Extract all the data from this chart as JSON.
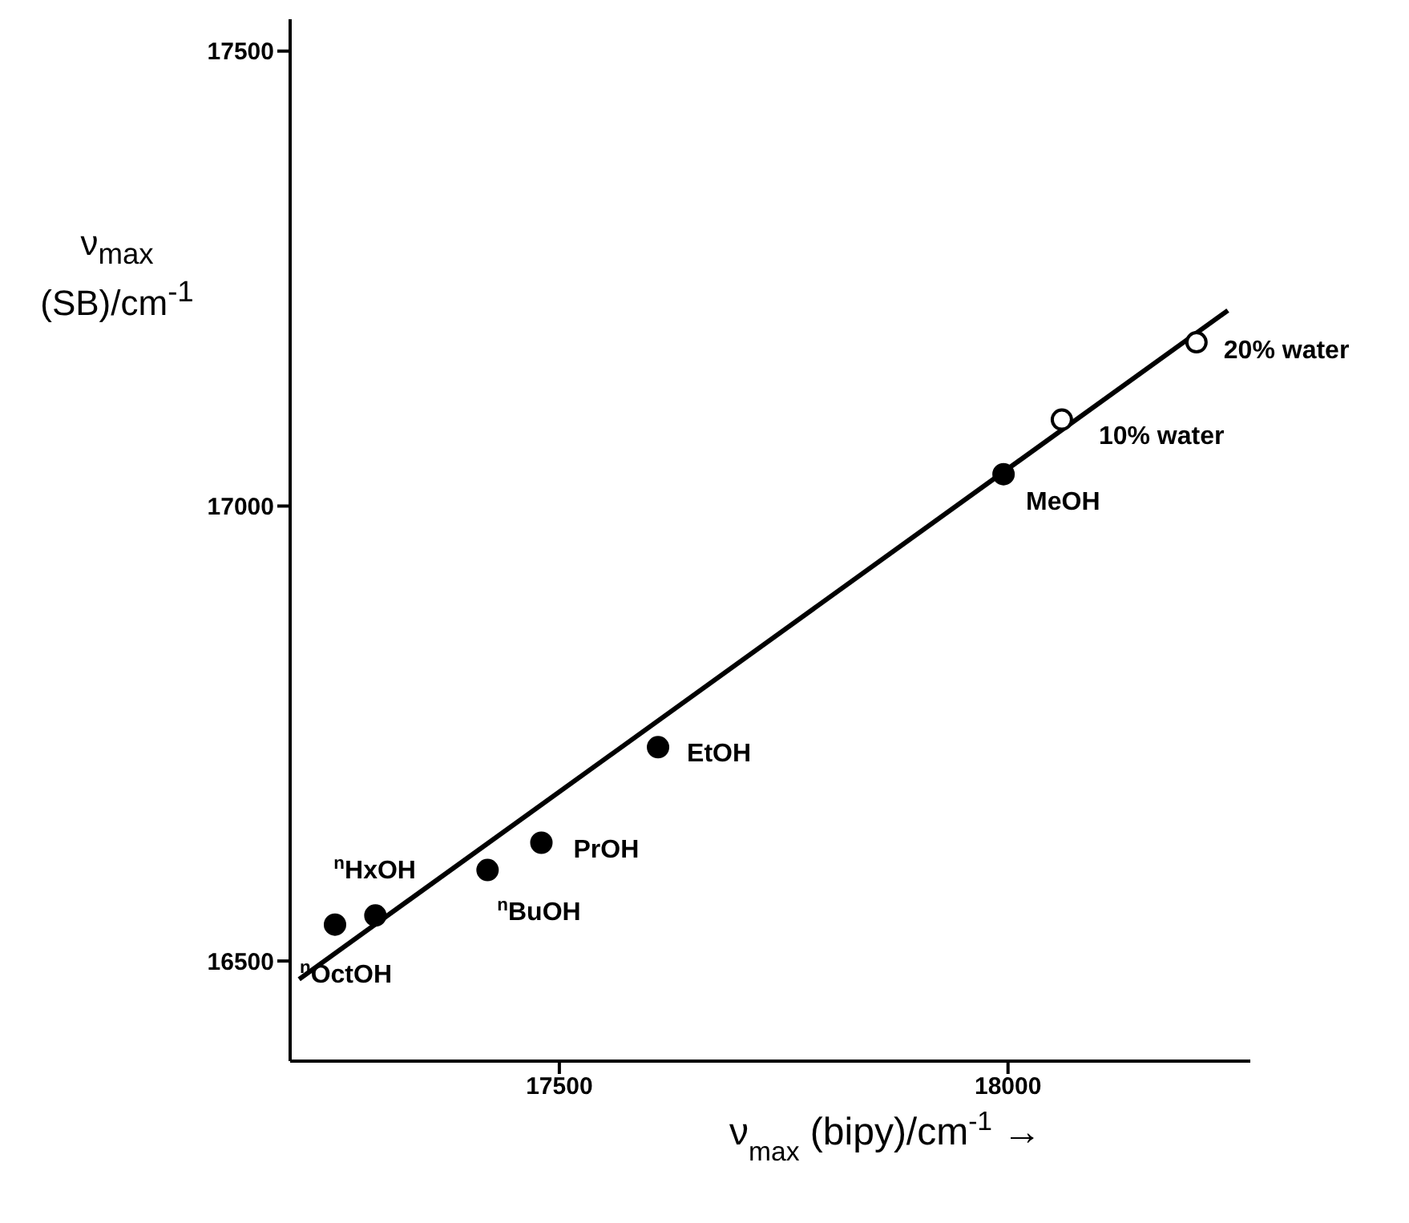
{
  "chart_data": {
    "type": "scatter",
    "xlabel": "ν$_{max}$ (bipy)/cm$^{-1}$ →",
    "ylabel": "ν$_{max}$ (SB)/cm$^{-1}$",
    "xlim": [
      17200,
      18270
    ],
    "ylim": [
      16390,
      17535
    ],
    "xticks": [
      17500,
      18000
    ],
    "yticks": [
      16500,
      17000,
      17500
    ],
    "marker": "circle",
    "series": [
      {
        "color": "#000000",
        "x": [
          17250,
          17295,
          17420,
          17480,
          17610,
          17995
        ],
        "values": [
          16540,
          16550,
          16600,
          16630,
          16735,
          17035
        ]
      },
      {
        "color": "#ffffff",
        "x": [
          18060,
          18210
        ],
        "values": [
          17095,
          17180
        ]
      },
      {
        "type": "line",
        "color": "#000000",
        "marker": "none",
        "x": [
          17210,
          18245
        ],
        "values": [
          16480,
          17215
        ]
      }
    ],
    "annotations": [
      {
        "text": "$^{n}$OctOH",
        "x": 17250,
        "y": 16540
      },
      {
        "text": "$^{n}$HxOH",
        "x": 17295,
        "y": 16550
      },
      {
        "text": "$^{n}$BuOH",
        "x": 17420,
        "y": 16600
      },
      {
        "text": "PrOH",
        "x": 17480,
        "y": 16630
      },
      {
        "text": "EtOH",
        "x": 17610,
        "y": 16735
      },
      {
        "text": "MeOH",
        "x": 17995,
        "y": 17035
      },
      {
        "text": "10% water",
        "x": 18060,
        "y": 17095
      },
      {
        "text": "20% water",
        "x": 18210,
        "y": 17180
      }
    ]
  }
}
